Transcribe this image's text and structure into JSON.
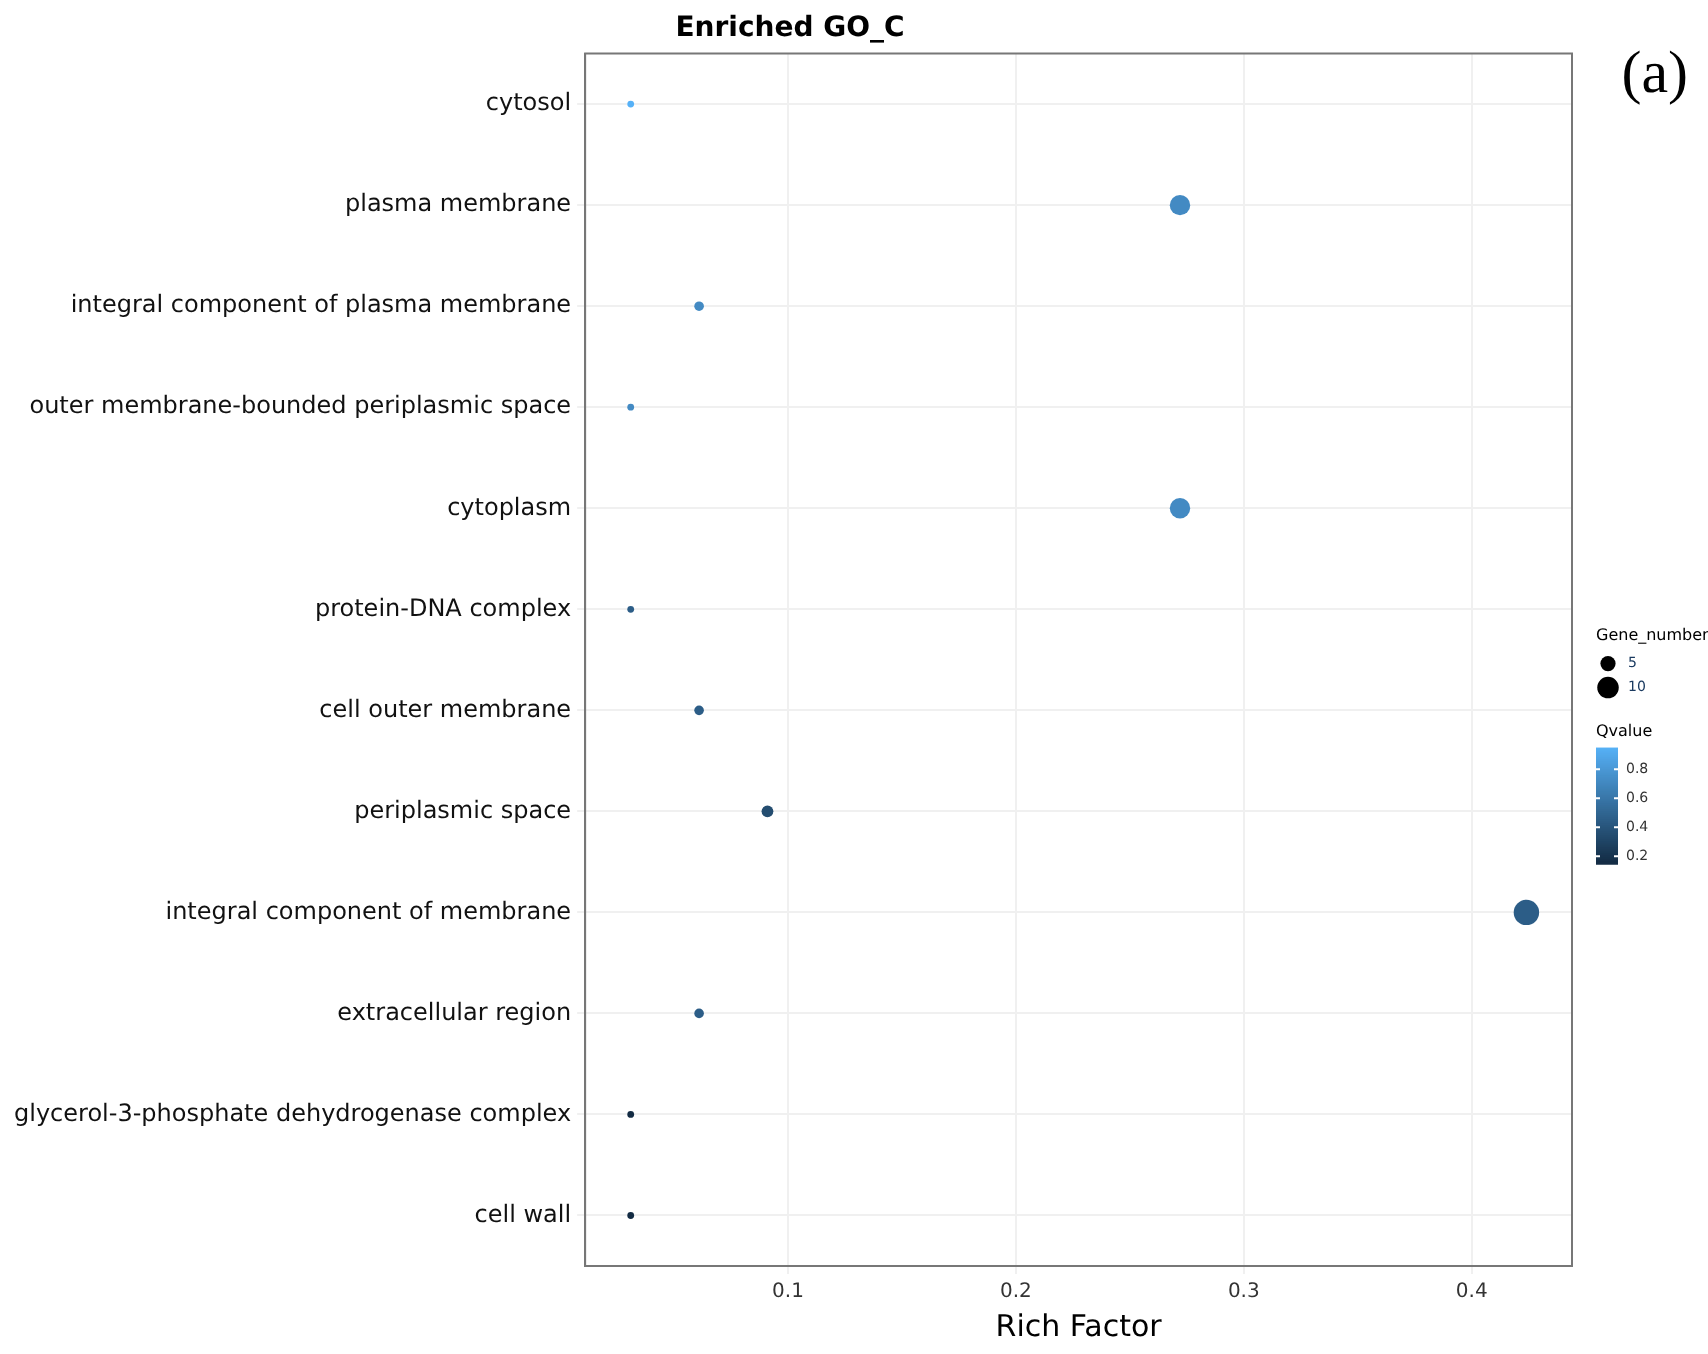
{
  "chart_data": {
    "type": "bubble",
    "title": "Enriched GO_C",
    "xlabel": "Rich Factor",
    "legend_title": "Gene_number",
    "clabel": "Qvalue",
    "annotations": [
      "(a)"
    ],
    "categories": [
      "cytosol",
      "plasma membrane",
      "integral component of plasma membrane",
      "outer membrane-bounded periplasmic space",
      "cytoplasm",
      "protein-DNA complex",
      "cell outer membrane",
      "periplasmic space",
      "integral component of membrane",
      "extracellular region",
      "glycerol-3-phosphate dehydrogenase complex",
      "cell wall"
    ],
    "values": [
      0.031,
      0.272,
      0.061,
      0.031,
      0.272,
      0.031,
      0.061,
      0.091,
      0.424,
      0.061,
      0.031,
      0.031
    ],
    "sizes": [
      1,
      9,
      2,
      1,
      9,
      1,
      2,
      3,
      14,
      2,
      1,
      1
    ],
    "size_legend": [
      5,
      10
    ],
    "cvalues": [
      0.95,
      0.72,
      0.72,
      0.72,
      0.72,
      0.45,
      0.45,
      0.35,
      0.45,
      0.45,
      0.15,
      0.15
    ],
    "clim": [
      0.15,
      0.95
    ],
    "cticks": [
      0.2,
      0.4,
      0.6,
      0.8
    ],
    "xlim": [
      0.011,
      0.444
    ],
    "xticks": [
      0.1,
      0.2,
      0.3,
      0.4
    ],
    "grid": true,
    "orientation": "horizontal"
  }
}
